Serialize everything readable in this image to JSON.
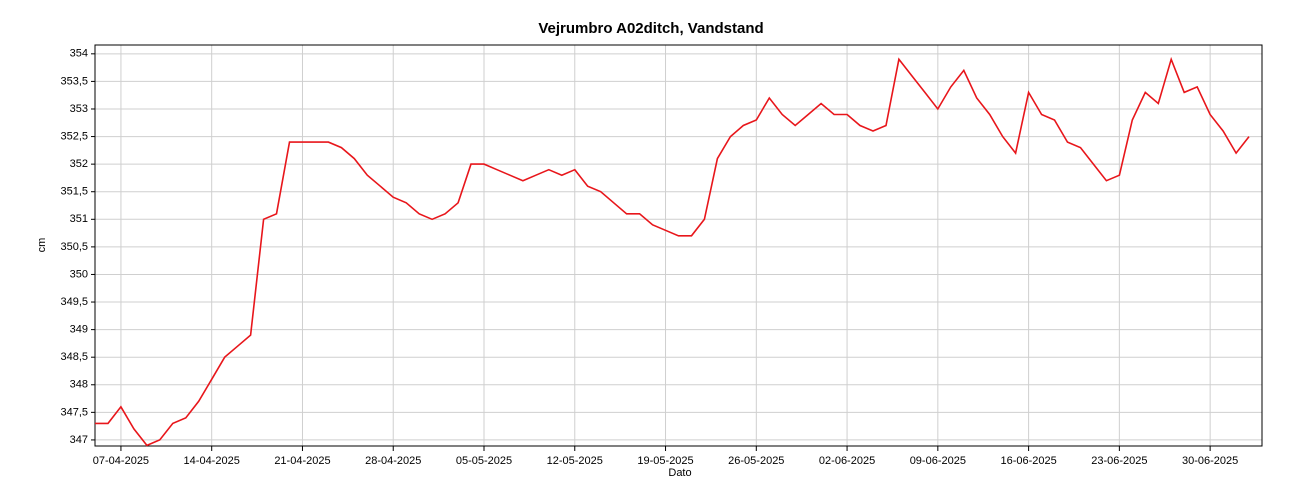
{
  "chart_data": {
    "type": "line",
    "title": "Vejrumbro A02ditch, Vandstand",
    "xlabel": "Dato",
    "ylabel": "cm",
    "x": [
      "05-04-2025",
      "06-04-2025",
      "07-04-2025",
      "08-04-2025",
      "09-04-2025",
      "10-04-2025",
      "11-04-2025",
      "12-04-2025",
      "13-04-2025",
      "14-04-2025",
      "15-04-2025",
      "16-04-2025",
      "17-04-2025",
      "18-04-2025",
      "19-04-2025",
      "20-04-2025",
      "21-04-2025",
      "22-04-2025",
      "23-04-2025",
      "24-04-2025",
      "25-04-2025",
      "26-04-2025",
      "27-04-2025",
      "28-04-2025",
      "29-04-2025",
      "30-04-2025",
      "01-05-2025",
      "02-05-2025",
      "03-05-2025",
      "04-05-2025",
      "05-05-2025",
      "06-05-2025",
      "07-05-2025",
      "08-05-2025",
      "09-05-2025",
      "10-05-2025",
      "11-05-2025",
      "12-05-2025",
      "13-05-2025",
      "14-05-2025",
      "15-05-2025",
      "16-05-2025",
      "17-05-2025",
      "18-05-2025",
      "19-05-2025",
      "20-05-2025",
      "21-05-2025",
      "22-05-2025",
      "23-05-2025",
      "24-05-2025",
      "25-05-2025",
      "26-05-2025",
      "27-05-2025",
      "28-05-2025",
      "29-05-2025",
      "30-05-2025",
      "31-05-2025",
      "01-06-2025",
      "02-06-2025",
      "03-06-2025",
      "04-06-2025",
      "05-06-2025",
      "06-06-2025",
      "07-06-2025",
      "08-06-2025",
      "09-06-2025",
      "10-06-2025",
      "11-06-2025",
      "12-06-2025",
      "13-06-2025",
      "14-06-2025",
      "15-06-2025",
      "16-06-2025",
      "17-06-2025",
      "18-06-2025",
      "19-06-2025",
      "20-06-2025",
      "21-06-2025",
      "22-06-2025",
      "23-06-2025",
      "24-06-2025",
      "25-06-2025",
      "26-06-2025",
      "27-06-2025",
      "28-06-2025",
      "29-06-2025",
      "30-06-2025",
      "01-07-2025",
      "02-07-2025",
      "03-07-2025"
    ],
    "series": [
      {
        "name": "Vandstand",
        "color": "#e8161b",
        "values": [
          347.3,
          347.3,
          347.6,
          347.2,
          346.9,
          347.0,
          347.3,
          347.4,
          347.7,
          348.1,
          348.5,
          348.7,
          348.9,
          351.0,
          351.1,
          352.4,
          352.4,
          352.4,
          352.4,
          352.3,
          352.1,
          351.8,
          351.6,
          351.4,
          351.3,
          351.1,
          351.0,
          351.1,
          351.3,
          352.0,
          352.0,
          351.9,
          351.8,
          351.7,
          351.8,
          351.9,
          351.8,
          351.9,
          351.6,
          351.5,
          351.3,
          351.1,
          351.1,
          350.9,
          350.8,
          350.7,
          350.7,
          351.0,
          352.1,
          352.5,
          352.7,
          352.8,
          353.2,
          352.9,
          352.7,
          352.9,
          353.1,
          352.9,
          352.9,
          352.7,
          352.6,
          352.7,
          353.9,
          353.6,
          353.3,
          353.0,
          353.4,
          353.7,
          353.2,
          352.9,
          352.5,
          352.2,
          353.3,
          352.9,
          352.8,
          352.4,
          352.3,
          352.0,
          351.7,
          351.8,
          352.8,
          353.3,
          353.1,
          353.9,
          353.3,
          353.4,
          352.9,
          352.6,
          352.2,
          352.5
        ]
      }
    ],
    "xlim": [
      "05-04-2025",
      "04-07-2025"
    ],
    "xticks": [
      "07-04-2025",
      "14-04-2025",
      "21-04-2025",
      "28-04-2025",
      "05-05-2025",
      "12-05-2025",
      "19-05-2025",
      "26-05-2025",
      "02-06-2025",
      "09-06-2025",
      "16-06-2025",
      "23-06-2025",
      "30-06-2025"
    ],
    "ylim": [
      346.89,
      354.16
    ],
    "yticks": [
      347,
      {
        "value": 347.5,
        "label": "347,5"
      },
      348,
      {
        "value": 348.5,
        "label": "348,5"
      },
      349,
      {
        "value": 349.5,
        "label": "349,5"
      },
      350,
      {
        "value": 350.5,
        "label": "350,5"
      },
      351,
      {
        "value": 351.5,
        "label": "351,5"
      },
      352,
      {
        "value": 352.5,
        "label": "352,5"
      },
      353,
      {
        "value": 353.5,
        "label": "353,5"
      },
      354
    ],
    "grid": true
  }
}
